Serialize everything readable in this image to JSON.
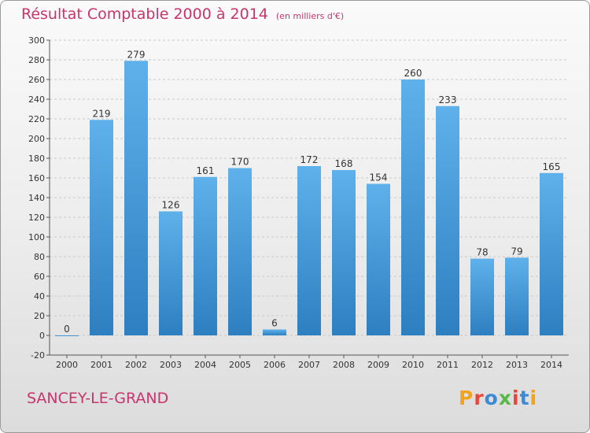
{
  "title": "Résultat Comptable 2000 à 2014",
  "subtitle": "(en milliers d'€)",
  "commune": "SANCEY-LE-GRAND",
  "logo": "Proxiti",
  "colors": {
    "title": "#c8356b",
    "bar_light": "#5eb1ea",
    "bar_dark": "#2d7fc0",
    "logo": [
      "#f2a31b",
      "#e8463a",
      "#3a8ad8",
      "#59b847",
      "#e8463a",
      "#3a8ad8",
      "#f2a31b"
    ]
  },
  "chart_data": {
    "type": "bar",
    "title": "Résultat Comptable 2000 à 2014 (en milliers d'€)",
    "xlabel": "",
    "ylabel": "",
    "categories": [
      "2000",
      "2001",
      "2002",
      "2003",
      "2004",
      "2005",
      "2006",
      "2007",
      "2008",
      "2009",
      "2010",
      "2011",
      "2012",
      "2013",
      "2014"
    ],
    "values": [
      0,
      219,
      279,
      126,
      161,
      170,
      6,
      172,
      168,
      154,
      260,
      233,
      78,
      79,
      165
    ],
    "ylim": [
      -20,
      300
    ],
    "yticks": [
      -20,
      0,
      20,
      40,
      60,
      80,
      100,
      120,
      140,
      160,
      180,
      200,
      220,
      240,
      260,
      280,
      300
    ],
    "grid": true
  }
}
